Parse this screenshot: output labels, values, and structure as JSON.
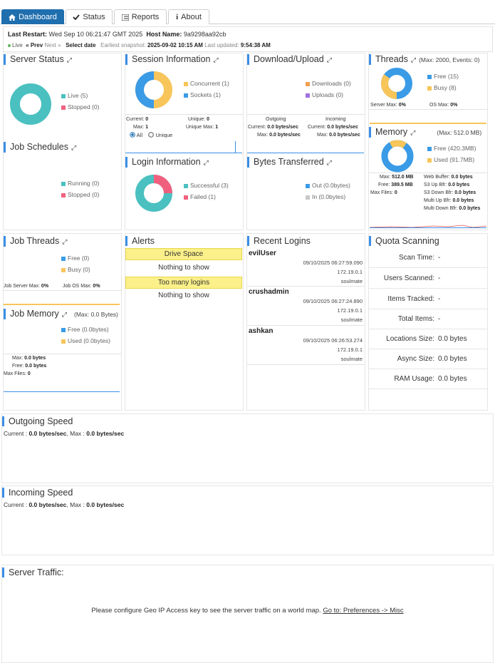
{
  "tabs": [
    {
      "label": "Dashboard",
      "icon": "home-icon",
      "active": true
    },
    {
      "label": "Status",
      "icon": "check-icon",
      "active": false
    },
    {
      "label": "Reports",
      "icon": "list-icon",
      "active": false
    },
    {
      "label": "About",
      "icon": "info-icon",
      "active": false
    }
  ],
  "header": {
    "last_restart_label": "Last Restart:",
    "last_restart_value": "Wed Sep 10 06:21:47 GMT 2025",
    "host_label": "Host Name:",
    "host_value": "9a9298aa92cb",
    "live_label": "Live",
    "prev_label": "« Prev",
    "next_label": "Next »",
    "select_date_label": "Select date",
    "earliest_label": "Earliest snapshot:",
    "earliest_value": "2025-09-02 10:15 AM",
    "last_updated_label": "Last updated:",
    "last_updated_value": "9:54:38 AM"
  },
  "server_status": {
    "title": "Server Status",
    "legend": [
      {
        "label": "Live (5)",
        "color": "#4bc0c0"
      },
      {
        "label": "Stopped (0)",
        "color": "#f0607e"
      }
    ]
  },
  "job_schedules": {
    "title": "Job Schedules",
    "legend": [
      {
        "label": "Running (0)",
        "color": "#4bc0c0"
      },
      {
        "label": "Stopped (0)",
        "color": "#f0607e"
      }
    ]
  },
  "session_info": {
    "title": "Session Information",
    "legend": [
      {
        "label": "Concurrent (1)",
        "color": "#f7c55a"
      },
      {
        "label": "Sockets (1)",
        "color": "#3a9be6"
      }
    ],
    "current_label": "Current:",
    "current_value": "0",
    "max_label": "Max:",
    "max_value": "1",
    "unique_label": "Unique:",
    "unique_value": "0",
    "unique_max_label": "Unique Max:",
    "unique_max_value": "1",
    "radio_all": "All",
    "radio_unique": "Unique"
  },
  "login_info": {
    "title": "Login Information",
    "legend": [
      {
        "label": "Successful (3)",
        "color": "#4bc0c0"
      },
      {
        "label": "Failed (1)",
        "color": "#f0607e"
      }
    ]
  },
  "download_upload": {
    "title": "Download/Upload",
    "legend": [
      {
        "label": "Downloads (0)",
        "color": "#f0a050"
      },
      {
        "label": "Uploads (0)",
        "color": "#a070e0"
      }
    ],
    "outgoing_label": "Outgoing",
    "incoming_label": "Incoming",
    "out_current": "Current:",
    "out_current_value": "0.0 bytes/sec",
    "out_max": "Max:",
    "out_max_value": "0.0 bytes/sec",
    "in_current": "Current:",
    "in_current_value": "0.0 bytes/sec",
    "in_max": "Max:",
    "in_max_value": "0.0 bytes/sec"
  },
  "bytes_transferred": {
    "title": "Bytes Transferred",
    "legend": [
      {
        "label": "Out (0.0bytes)",
        "color": "#3a9be6"
      },
      {
        "label": "In (0.0bytes)",
        "color": "#c8c8c8"
      }
    ]
  },
  "threads": {
    "title": "Threads",
    "extra": "(Max: 2000, Events: 0)",
    "legend": [
      {
        "label": "Free (15)",
        "color": "#3a9be6"
      },
      {
        "label": "Busy (8)",
        "color": "#f7c55a"
      }
    ],
    "server_max_label": "Server Max:",
    "server_max_value": "0%",
    "os_max_label": "OS Max:",
    "os_max_value": "0%"
  },
  "memory": {
    "title": "Memory",
    "extra": "(Max: 512.0 MB)",
    "legend": [
      {
        "label": "Free (420.3MB)",
        "color": "#3a9be6"
      },
      {
        "label": "Used (91.7MB)",
        "color": "#f7c55a"
      }
    ],
    "max_label": "Max:",
    "max_value": "512.0 MB",
    "free_label": "Free:",
    "free_value": "389.5 MB",
    "max_files_label": "Max Files:",
    "max_files_value": "0",
    "web_buffer_label": "Web Buffer:",
    "web_buffer_value": "0.0 bytes",
    "s3_up_label": "S3 Up Bfr:",
    "s3_up_value": "0.0 bytes",
    "s3_down_label": "S3 Down Bfr:",
    "s3_down_value": "0.0 bytes",
    "multi_up_label": "Multi Up Bfr:",
    "multi_up_value": "0.0 bytes",
    "multi_down_label": "Multi Down Bfr:",
    "multi_down_value": "0.0 bytes"
  },
  "job_threads": {
    "title": "Job Threads",
    "legend": [
      {
        "label": "Free (0)",
        "color": "#3a9be6"
      },
      {
        "label": "Busy (0)",
        "color": "#f7c55a"
      }
    ],
    "server_max_label": "Job Server Max:",
    "server_max_value": "0%",
    "os_max_label": "Job OS Max:",
    "os_max_value": "0%"
  },
  "job_memory": {
    "title": "Job Memory",
    "extra": "(Max: 0.0 Bytes)",
    "legend": [
      {
        "label": "Free (0.0bytes)",
        "color": "#3a9be6"
      },
      {
        "label": "Used (0.0bytes)",
        "color": "#f7c55a"
      }
    ],
    "max_label": "Max:",
    "max_value": "0.0 bytes",
    "free_label": "Free:",
    "free_value": "0.0 bytes",
    "max_files_label": "Max Files:",
    "max_files_value": "0"
  },
  "alerts": {
    "title": "Alerts",
    "sections": [
      {
        "heading": "Drive Space",
        "message": "Nothing to show"
      },
      {
        "heading": "Too many logins",
        "message": "Nothing to show"
      }
    ]
  },
  "recent_logins": {
    "title": "Recent Logins",
    "items": [
      {
        "user": "evilUser",
        "time": "09/10/2025 06:27:59.090",
        "ip": "172.19.0.1",
        "host": "soulmate"
      },
      {
        "user": "crushadmin",
        "time": "09/10/2025 06:27:24.890",
        "ip": "172.19.0.1",
        "host": "soulmate"
      },
      {
        "user": "ashkan",
        "time": "09/10/2025 06:26:53.274",
        "ip": "172.19.0.1",
        "host": "soulmate"
      }
    ]
  },
  "quota": {
    "title": "Quota Scanning",
    "rows": [
      {
        "label": "Scan Time:",
        "value": "-"
      },
      {
        "label": "Users Scanned:",
        "value": "-"
      },
      {
        "label": "Items Tracked:",
        "value": "-"
      },
      {
        "label": "Total Items:",
        "value": "-"
      },
      {
        "label": "Locations Size:",
        "value": "0.0 bytes"
      },
      {
        "label": "Async Size:",
        "value": "0.0 bytes"
      },
      {
        "label": "RAM Usage:",
        "value": "0.0 bytes"
      }
    ]
  },
  "outgoing_speed": {
    "title": "Outgoing Speed",
    "current_label": "Current :",
    "current_value": "0.0 bytes/sec",
    "max_label": "Max :",
    "max_value": "0.0 bytes/sec"
  },
  "incoming_speed": {
    "title": "Incoming Speed",
    "current_label": "Current :",
    "current_value": "0.0 bytes/sec",
    "max_label": "Max :",
    "max_value": "0.0 bytes/sec"
  },
  "server_traffic": {
    "title": "Server Traffic:",
    "message": "Please configure Geo IP Access key to see the server traffic on a world map.",
    "link": "Go to: Preferences -> Misc"
  }
}
